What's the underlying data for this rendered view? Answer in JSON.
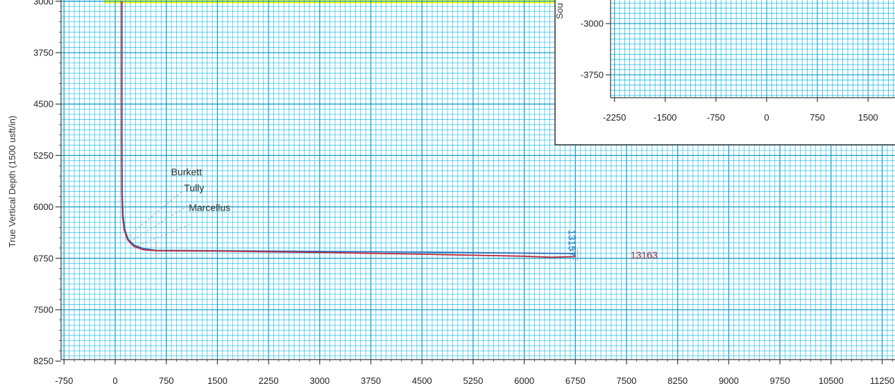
{
  "colors": {
    "grid_minor": "#00b4e6",
    "grid_major": "#0096c8",
    "header_band": "#ffff2a",
    "plan_line": "#1f6fc0",
    "actual_line": "#c0283a",
    "label_blue": "#1f6fc0",
    "label_red": "#a82838",
    "axis": "#3a3a3a"
  },
  "chart_data": [
    {
      "type": "line",
      "title": "",
      "ylabel": "True Vertical Depth (1500 usft/in)",
      "xlabel": "",
      "xlim": [
        -900,
        11400
      ],
      "ylim": [
        3000,
        8300
      ],
      "y_inverted": true,
      "grid": true,
      "xticks": [
        -750,
        0,
        750,
        1500,
        2250,
        3000,
        3750,
        4500,
        5250,
        6000,
        6750,
        7500,
        8250,
        9000,
        9750,
        10500,
        11250
      ],
      "xtick_labels": [
        "-750",
        "0",
        "750",
        "1500",
        "2250",
        "3000",
        "3750",
        "4500",
        "5250",
        "6000",
        "6750",
        "7500",
        "8250",
        "9000",
        "9750",
        "10500",
        "11250"
      ],
      "yticks": [
        3000,
        3750,
        4500,
        5250,
        6000,
        6750,
        7500,
        8250
      ],
      "ytick_labels": [
        "3000",
        "3750",
        "4500",
        "5250",
        "6000",
        "6750",
        "7500",
        "8250"
      ],
      "series": [
        {
          "color": "#1f6fc0",
          "x": [
            100,
            100,
            104,
            115,
            140,
            190,
            280,
            420,
            600,
            1500,
            3000,
            4500,
            6000,
            6750
          ],
          "y": [
            3000,
            5000,
            5800,
            6120,
            6330,
            6470,
            6560,
            6610,
            6635,
            6640,
            6650,
            6660,
            6675,
            6680
          ]
        },
        {
          "color": "#c0283a",
          "x": [
            95,
            95,
            98,
            108,
            132,
            182,
            272,
            410,
            600,
            1500,
            3000,
            4500,
            6000,
            6400,
            6750
          ],
          "y": [
            3000,
            5000,
            5800,
            6130,
            6340,
            6480,
            6575,
            6625,
            6640,
            6645,
            6665,
            6690,
            6720,
            6735,
            6725
          ]
        }
      ],
      "annotations": [
        {
          "text": "Burkett",
          "x": 820,
          "y": 5540
        },
        {
          "text": "Tully",
          "x": 1010,
          "y": 5770
        },
        {
          "text": "Marcellus",
          "x": 1080,
          "y": 6060
        },
        {
          "text": "13157",
          "x": 6650,
          "y": 6330,
          "color": "#1f6fc0",
          "rotate": 90
        },
        {
          "text": "13163",
          "x": 7560,
          "y": 6750,
          "color": "#a82838"
        }
      ]
    },
    {
      "type": "line",
      "title": "",
      "ylabel": "Sou",
      "xlabel": "",
      "xlim": [
        -2500,
        2020
      ],
      "ylim": [
        -2100,
        -4100
      ],
      "grid": true,
      "xticks": [
        -2250,
        -1500,
        -750,
        0,
        750,
        1500
      ],
      "xtick_labels": [
        "-2250",
        "-1500",
        "-750",
        "0",
        "750",
        "1500"
      ],
      "yticks": [
        -3000,
        -3750
      ],
      "ytick_labels": [
        "-3000",
        "-3750"
      ]
    }
  ]
}
